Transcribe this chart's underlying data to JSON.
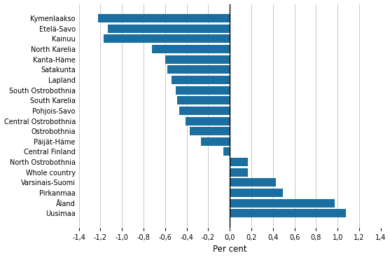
{
  "categories": [
    "Kymenlaakso",
    "Etelä-Savo",
    "Kainuu",
    "North Karelia",
    "Kanta-Häme",
    "Satakunta",
    "Lapland",
    "South Ostrobothnia",
    "South Karelia",
    "Pohjois-Savo",
    "Central Ostrobothnia",
    "Ostrobothnia",
    "Päijät-Häme",
    "Central Finland",
    "North Ostrobothnia",
    "Whole country",
    "Varsinais-Suomi",
    "Pirkanmaa",
    "Åland",
    "Uusimaa"
  ],
  "values": [
    -1.22,
    -1.13,
    -1.17,
    -0.72,
    -0.6,
    -0.58,
    -0.54,
    -0.5,
    -0.49,
    -0.47,
    -0.41,
    -0.37,
    -0.27,
    -0.06,
    0.17,
    0.17,
    0.43,
    0.49,
    0.97,
    1.08
  ],
  "bar_color": "#1a6ea0",
  "xlabel": "Per cent",
  "xlim": [
    -1.4,
    1.4
  ],
  "xticks": [
    -1.4,
    -1.2,
    -1.0,
    -0.8,
    -0.6,
    -0.4,
    -0.2,
    0.0,
    0.2,
    0.4,
    0.6,
    0.8,
    1.0,
    1.2,
    1.4
  ],
  "xtick_labels": [
    "-1,4",
    "-1,2",
    "-1,0",
    "-0,8",
    "-0,6",
    "-0,4",
    "-0,2",
    "0,0",
    "0,2",
    "0,4",
    "0,6",
    "0,8",
    "1,0",
    "1,2",
    "1,4"
  ],
  "grid_color": "#c8c8c8",
  "background_color": "#ffffff",
  "label_fontsize": 7.0,
  "xlabel_fontsize": 8.5
}
